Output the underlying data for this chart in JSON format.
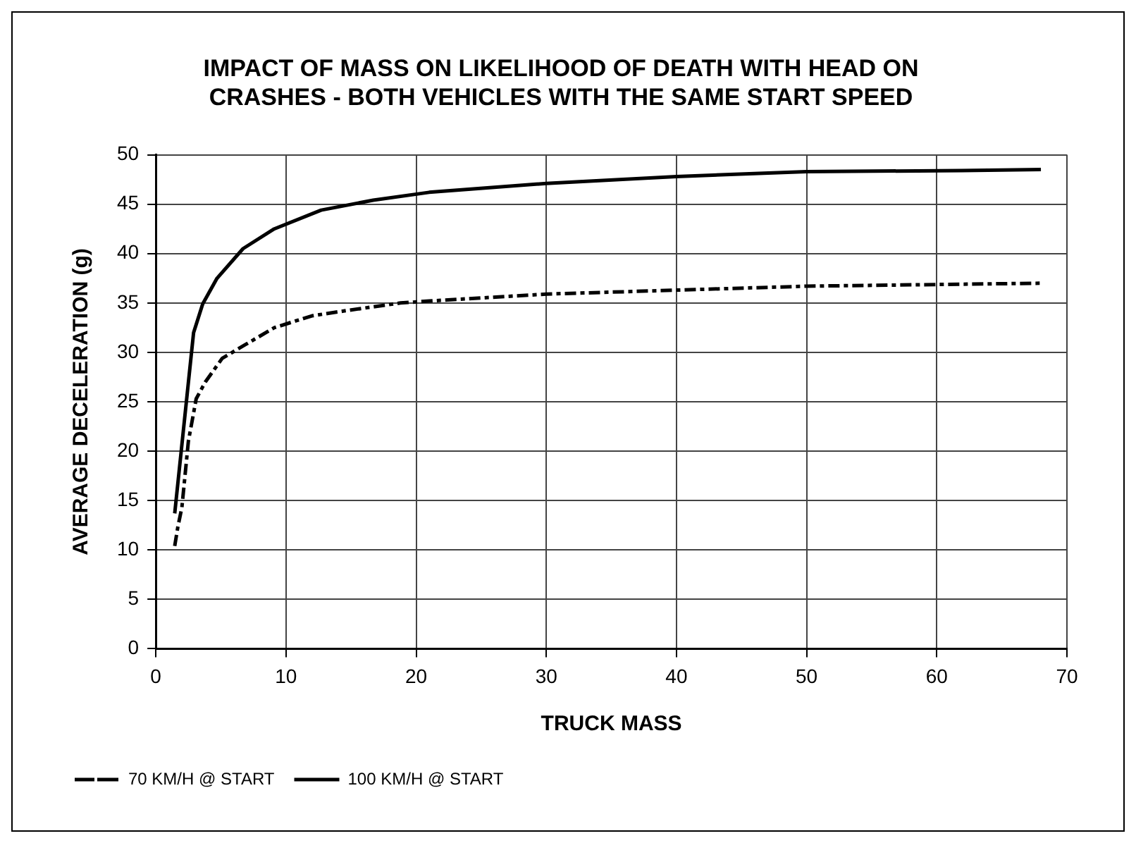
{
  "chart_data": {
    "type": "line",
    "title": "IMPACT OF MASS ON LIKELIHOOD OF DEATH WITH HEAD ON CRASHES - BOTH VEHICLES WITH THE SAME START SPEED",
    "xlabel": "TRUCK MASS",
    "ylabel": "AVERAGE DECELERATION (g)",
    "xlim": [
      0,
      70
    ],
    "xticks": [
      0,
      10,
      20,
      30,
      40,
      50,
      60,
      70
    ],
    "ylim": [
      0,
      50
    ],
    "yticks": [
      0,
      5,
      10,
      15,
      20,
      25,
      30,
      35,
      40,
      45,
      50
    ],
    "grid": true,
    "legend": "bottom left",
    "marker": "none",
    "series": [
      {
        "name": "70 KM/H @ START",
        "color": "#000000",
        "line_style": "dashed",
        "x": [
          1.45,
          1.7,
          2.0,
          2.5,
          3.1,
          3.8,
          5.1,
          6.9,
          9.1,
          12,
          14.5,
          18.8,
          21,
          30,
          40,
          50,
          61.9,
          68
        ],
        "values": [
          10.4,
          12.4,
          14.3,
          21,
          25.3,
          27,
          29.4,
          30.8,
          32.5,
          33.7,
          34.2,
          35,
          35.2,
          35.9,
          36.3,
          36.7,
          36.9,
          37
        ]
      },
      {
        "name": "100 KM/H @ START",
        "color": "#000000",
        "line_style": "solid",
        "x": [
          1.45,
          2.9,
          3.6,
          4.7,
          6.7,
          9.1,
          12.7,
          16.7,
          21,
          30,
          40,
          50,
          61.9,
          68
        ],
        "values": [
          13.7,
          32,
          34.9,
          37.5,
          40.5,
          42.5,
          44.4,
          45.4,
          46.2,
          47.1,
          47.8,
          48.3,
          48.4,
          48.5
        ]
      }
    ]
  }
}
